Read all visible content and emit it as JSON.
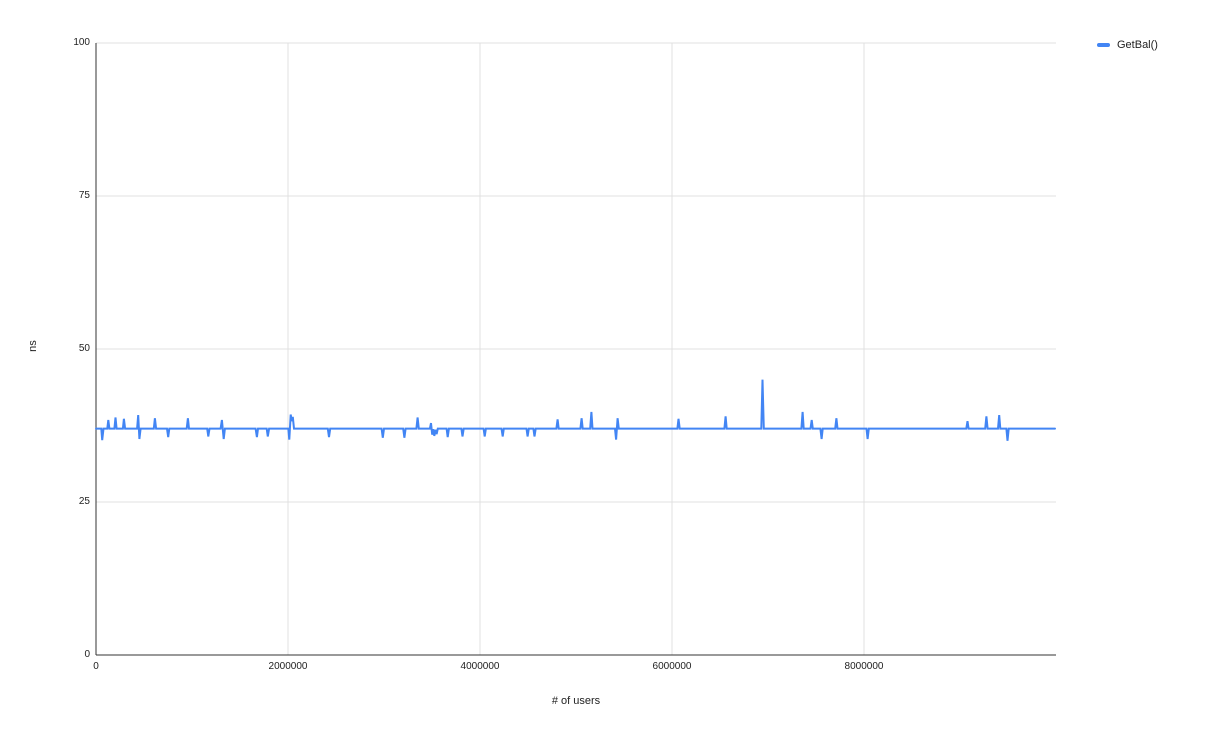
{
  "legend": {
    "label": "GetBal()",
    "marker_color": "#4285f4"
  },
  "colors": {
    "grid": "#e0e0e0",
    "axis": "#333333",
    "tick_text": "#222222",
    "series_blue": "#4285f4",
    "background": "#ffffff"
  },
  "chart_data": {
    "type": "line",
    "title": "",
    "xlabel": "# of users",
    "ylabel": "ns",
    "xlim": [
      0,
      10000000
    ],
    "ylim": [
      0,
      100
    ],
    "x_ticks": [
      0,
      2000000,
      4000000,
      6000000,
      8000000
    ],
    "y_ticks": [
      0,
      25,
      50,
      75,
      100
    ],
    "grid": true,
    "legend_position": "top-right",
    "series": [
      {
        "name": "GetBal()",
        "color": "#4285f4",
        "baseline_ns": 37,
        "points": [
          [
            0,
            37
          ],
          [
            55000,
            37
          ],
          [
            65000,
            35.1
          ],
          [
            78000,
            37
          ],
          [
            118000,
            37
          ],
          [
            128000,
            38.4
          ],
          [
            140000,
            37
          ],
          [
            192000,
            37
          ],
          [
            203000,
            38.8
          ],
          [
            215000,
            37
          ],
          [
            280000,
            37
          ],
          [
            291000,
            38.6
          ],
          [
            303000,
            37
          ],
          [
            428000,
            37
          ],
          [
            440000,
            39.2
          ],
          [
            452000,
            35.3
          ],
          [
            465000,
            37
          ],
          [
            602000,
            37
          ],
          [
            614000,
            38.7
          ],
          [
            626000,
            37
          ],
          [
            740000,
            37
          ],
          [
            752000,
            35.6
          ],
          [
            764000,
            37
          ],
          [
            945000,
            37
          ],
          [
            957000,
            38.7
          ],
          [
            969000,
            37
          ],
          [
            1158000,
            37
          ],
          [
            1170000,
            35.7
          ],
          [
            1182000,
            37
          ],
          [
            1298000,
            37
          ],
          [
            1311000,
            38.4
          ],
          [
            1330000,
            35.3
          ],
          [
            1343000,
            37
          ],
          [
            1663000,
            37
          ],
          [
            1676000,
            35.6
          ],
          [
            1688000,
            37
          ],
          [
            1778000,
            37
          ],
          [
            1790000,
            35.7
          ],
          [
            1803000,
            37
          ],
          [
            2003000,
            37
          ],
          [
            2014000,
            35.2
          ],
          [
            2028000,
            39.3
          ],
          [
            2040000,
            38.2
          ],
          [
            2050000,
            38.9
          ],
          [
            2062000,
            37
          ],
          [
            2415000,
            37
          ],
          [
            2427000,
            35.6
          ],
          [
            2440000,
            37
          ],
          [
            2975000,
            37
          ],
          [
            2988000,
            35.5
          ],
          [
            3000000,
            37
          ],
          [
            3200000,
            37
          ],
          [
            3213000,
            35.5
          ],
          [
            3225000,
            37
          ],
          [
            3338000,
            37
          ],
          [
            3350000,
            38.8
          ],
          [
            3363000,
            37
          ],
          [
            3478000,
            37
          ],
          [
            3490000,
            37.9
          ],
          [
            3502000,
            36.0
          ],
          [
            3514000,
            36.9
          ],
          [
            3524000,
            35.8
          ],
          [
            3536000,
            36.8
          ],
          [
            3548000,
            36.1
          ],
          [
            3560000,
            37
          ],
          [
            3652000,
            37
          ],
          [
            3664000,
            35.6
          ],
          [
            3676000,
            37
          ],
          [
            3806000,
            37
          ],
          [
            3818000,
            35.7
          ],
          [
            3830000,
            37
          ],
          [
            4037000,
            37
          ],
          [
            4049000,
            35.7
          ],
          [
            4061000,
            37
          ],
          [
            4224000,
            37
          ],
          [
            4236000,
            35.7
          ],
          [
            4248000,
            37
          ],
          [
            4484000,
            37
          ],
          [
            4496000,
            35.7
          ],
          [
            4508000,
            37
          ],
          [
            4556000,
            37
          ],
          [
            4568000,
            35.7
          ],
          [
            4580000,
            37
          ],
          [
            4796000,
            37
          ],
          [
            4808000,
            38.5
          ],
          [
            4820000,
            37
          ],
          [
            5046000,
            37
          ],
          [
            5058000,
            38.7
          ],
          [
            5070000,
            37
          ],
          [
            5148000,
            37
          ],
          [
            5160000,
            39.7
          ],
          [
            5172000,
            37
          ],
          [
            5406000,
            37
          ],
          [
            5418000,
            35.2
          ],
          [
            5433000,
            38.7
          ],
          [
            5446000,
            37
          ],
          [
            6056000,
            37
          ],
          [
            6068000,
            38.6
          ],
          [
            6080000,
            37
          ],
          [
            6546000,
            37
          ],
          [
            6558000,
            39.0
          ],
          [
            6570000,
            37
          ],
          [
            6930000,
            37
          ],
          [
            6943000,
            45.0
          ],
          [
            6956000,
            37
          ],
          [
            7348000,
            37
          ],
          [
            7360000,
            39.7
          ],
          [
            7372000,
            37
          ],
          [
            7443000,
            37
          ],
          [
            7455000,
            38.4
          ],
          [
            7467000,
            37
          ],
          [
            7546000,
            37
          ],
          [
            7558000,
            35.3
          ],
          [
            7570000,
            37
          ],
          [
            7700000,
            37
          ],
          [
            7712000,
            38.7
          ],
          [
            7724000,
            37
          ],
          [
            8026000,
            37
          ],
          [
            8038000,
            35.3
          ],
          [
            8050000,
            37
          ],
          [
            9066000,
            37
          ],
          [
            9078000,
            38.2
          ],
          [
            9090000,
            37
          ],
          [
            9263000,
            37
          ],
          [
            9275000,
            39.0
          ],
          [
            9287000,
            37
          ],
          [
            9396000,
            37
          ],
          [
            9408000,
            39.2
          ],
          [
            9420000,
            37
          ],
          [
            9483000,
            37
          ],
          [
            9495000,
            35.0
          ],
          [
            9507000,
            37
          ],
          [
            9990000,
            37
          ]
        ]
      }
    ]
  }
}
